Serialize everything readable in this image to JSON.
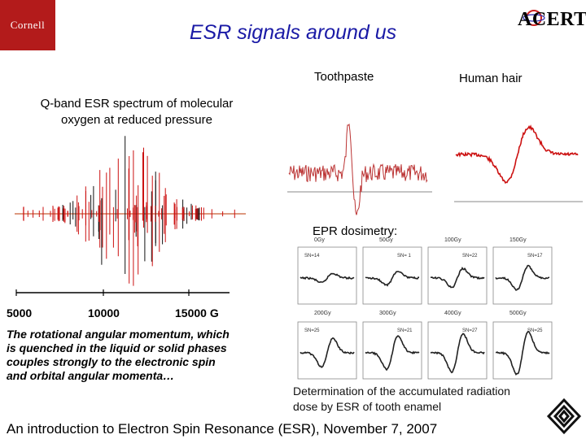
{
  "header": {
    "logo_left": "Cornell",
    "title": "ESR signals around us",
    "logo_right": "ACERT"
  },
  "spectra": {
    "toothpaste_label": "Toothpaste",
    "hair_label": "Human hair"
  },
  "oxygen": {
    "caption_line1": "Q-band ESR spectrum of molecular",
    "caption_line2": "oxygen at reduced pressure",
    "axis_ticks": [
      "5000",
      "10000",
      "15000 G"
    ],
    "description": "The rotational angular momentum, which is quenched in the liquid or solid phases couples strongly to the electronic spin and orbital angular momenta…"
  },
  "dosimetry": {
    "title": "EPR dosimetry:",
    "dose_labels": [
      "0Gy",
      "50Gy",
      "100Gy",
      "150Gy",
      "200Gy",
      "300Gy",
      "400Gy",
      "500Gy"
    ],
    "sn_labels": [
      "SN=14",
      "SN= 1",
      "SN=22",
      "SN=17",
      "SN=25",
      "SN=21",
      "SN=27",
      "SN=25"
    ],
    "caption_line1": "Determination of the accumulated radiation",
    "caption_line2": "dose by ESR of tooth enamel"
  },
  "footer": {
    "text": "An introduction to Electron Spin Resonance (ESR), November 7, 2007"
  },
  "colors": {
    "title_blue": "#1a1aa6",
    "cornell_red": "#b31b1b",
    "spectrum_red": "#cc1111"
  }
}
